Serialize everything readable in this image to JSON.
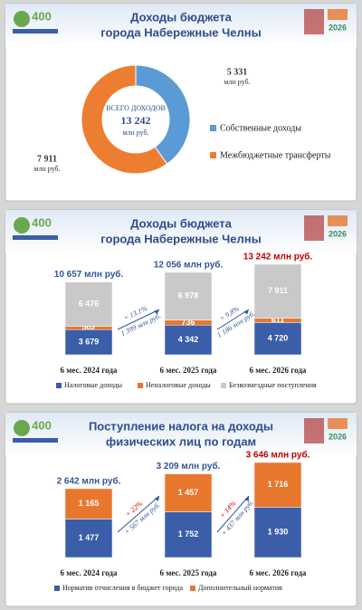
{
  "logos": {
    "left": "400",
    "right": "2026"
  },
  "chart_data": [
    {
      "type": "pie",
      "donut": true,
      "title_lines": [
        "Доходы бюджета",
        "города Набережные Челны"
      ],
      "categories": [
        "Собственные доходы",
        "Межбюджетные трансферты"
      ],
      "values": [
        5331,
        7911
      ],
      "value_labels": [
        "5 331",
        "7 911"
      ],
      "value_unit": "млн руб.",
      "colors": [
        "#5b9bd5",
        "#ed7d31"
      ],
      "center_lines": [
        "ВСЕГО ДОХОДОВ",
        "13 242",
        "млн руб."
      ]
    },
    {
      "type": "bar",
      "stacked": true,
      "title_lines": [
        "Доходы бюджета",
        "города Набережные Челны"
      ],
      "categories": [
        "6 мес. 2024 года",
        "6 мес. 2025 года",
        "6 мес. 2026 года"
      ],
      "series": [
        {
          "name": "Налоговые доходы",
          "color": "#3a5ea8",
          "values": [
            3679,
            4342,
            4720
          ],
          "value_labels": [
            "3 679",
            "4 342",
            "4 720"
          ]
        },
        {
          "name": "Неналоговые доходы",
          "color": "#e8772e",
          "values": [
            502,
            736,
            611
          ]
        },
        {
          "name": "Безвозмездные поступления",
          "color": "#c9c9c9",
          "values": [
            6476,
            6978,
            7911
          ],
          "value_labels": [
            "6 476",
            "6 978",
            "7 911"
          ]
        }
      ],
      "total_labels": [
        "10 657 млн руб.",
        "12 056 млн руб.",
        "13 242 млн руб."
      ],
      "total_label_colors": [
        "#2f5597",
        "#2f5597",
        "#c00000"
      ],
      "growth_labels": [
        [
          "+ 13,1%",
          "1 399 млн руб."
        ],
        [
          "+ 9,8%",
          "1 186 млн руб."
        ]
      ],
      "growth_colors": [
        "#2f5597",
        "#2f5597"
      ]
    },
    {
      "type": "bar",
      "stacked": true,
      "title_lines": [
        "Поступление налога на доходы",
        "физических лиц по годам"
      ],
      "categories": [
        "6 мес. 2024 года",
        "6 мес. 2025 года",
        "6 мес. 2026 года"
      ],
      "series": [
        {
          "name": "Норматив отчисления в бюджет города",
          "color": "#3a5ea8",
          "values": [
            1477,
            1752,
            1930
          ],
          "value_labels": [
            "1 477",
            "1 752",
            "1 930"
          ]
        },
        {
          "name": "Дополнительный норматив",
          "color": "#e8772e",
          "values": [
            1165,
            1457,
            1716
          ],
          "value_labels": [
            "1 165",
            "1 457",
            "1 716"
          ]
        }
      ],
      "total_labels": [
        "2 642 млн руб.",
        "3 209 млн руб.",
        "3 646 млн руб."
      ],
      "total_label_colors": [
        "#2f5597",
        "#2f5597",
        "#c00000"
      ],
      "growth_labels": [
        [
          "+ 22%",
          "+ 567 млн руб."
        ],
        [
          "+ 14%",
          "+ 437 млн руб."
        ]
      ],
      "growth_colors": [
        "#c00000",
        "#2f5597"
      ]
    }
  ]
}
